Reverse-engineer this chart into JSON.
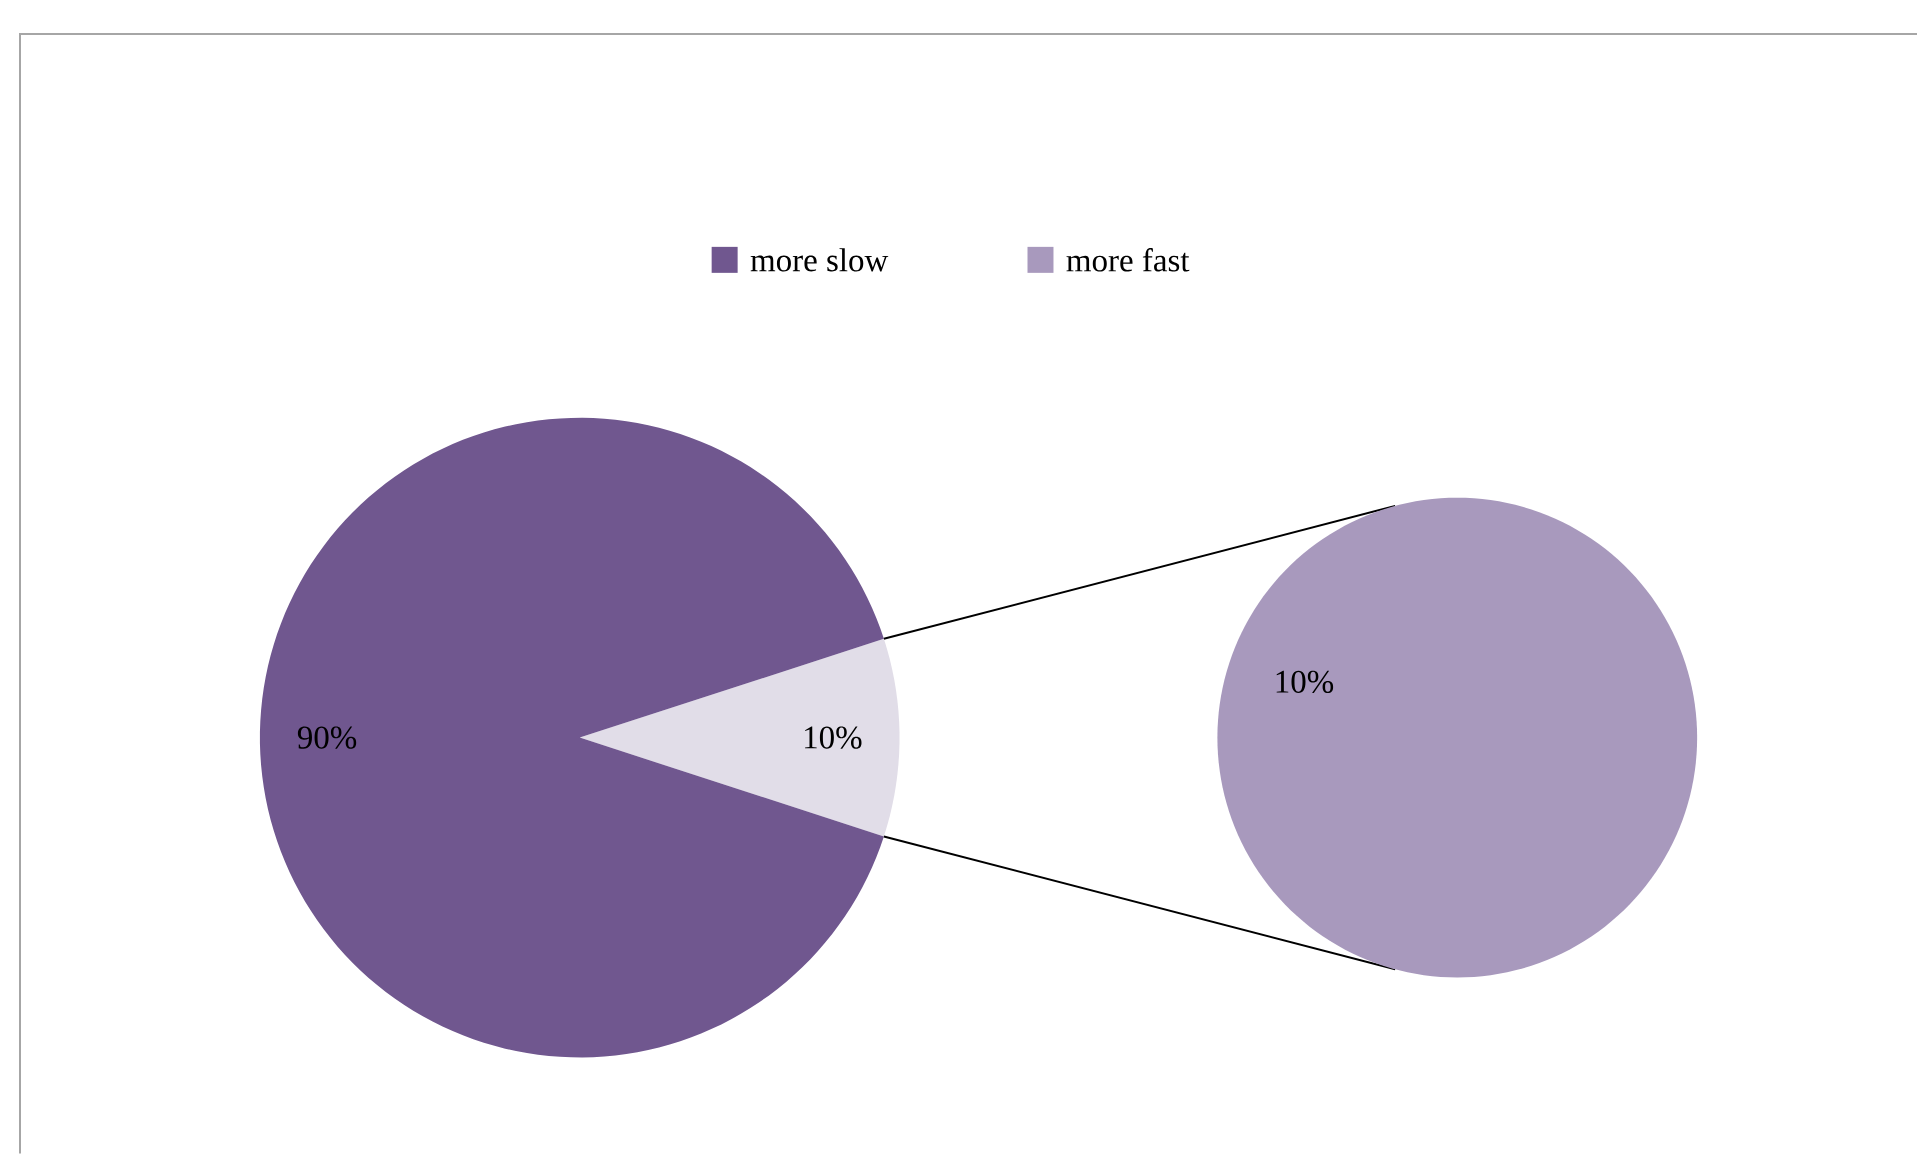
{
  "chart_data": [
    {
      "type": "pie",
      "categories": [
        "more slow",
        null
      ],
      "values": [
        90,
        10
      ],
      "colors": [
        "#70578f",
        "#e1dde8"
      ],
      "value_labels": [
        "90%",
        "10%"
      ],
      "legend": "top"
    },
    {
      "type": "pie",
      "categories": [
        "more fast"
      ],
      "values": [
        10
      ],
      "colors": [
        "#a899bd"
      ],
      "value_labels": [
        "10%"
      ],
      "legend": "top"
    }
  ]
}
